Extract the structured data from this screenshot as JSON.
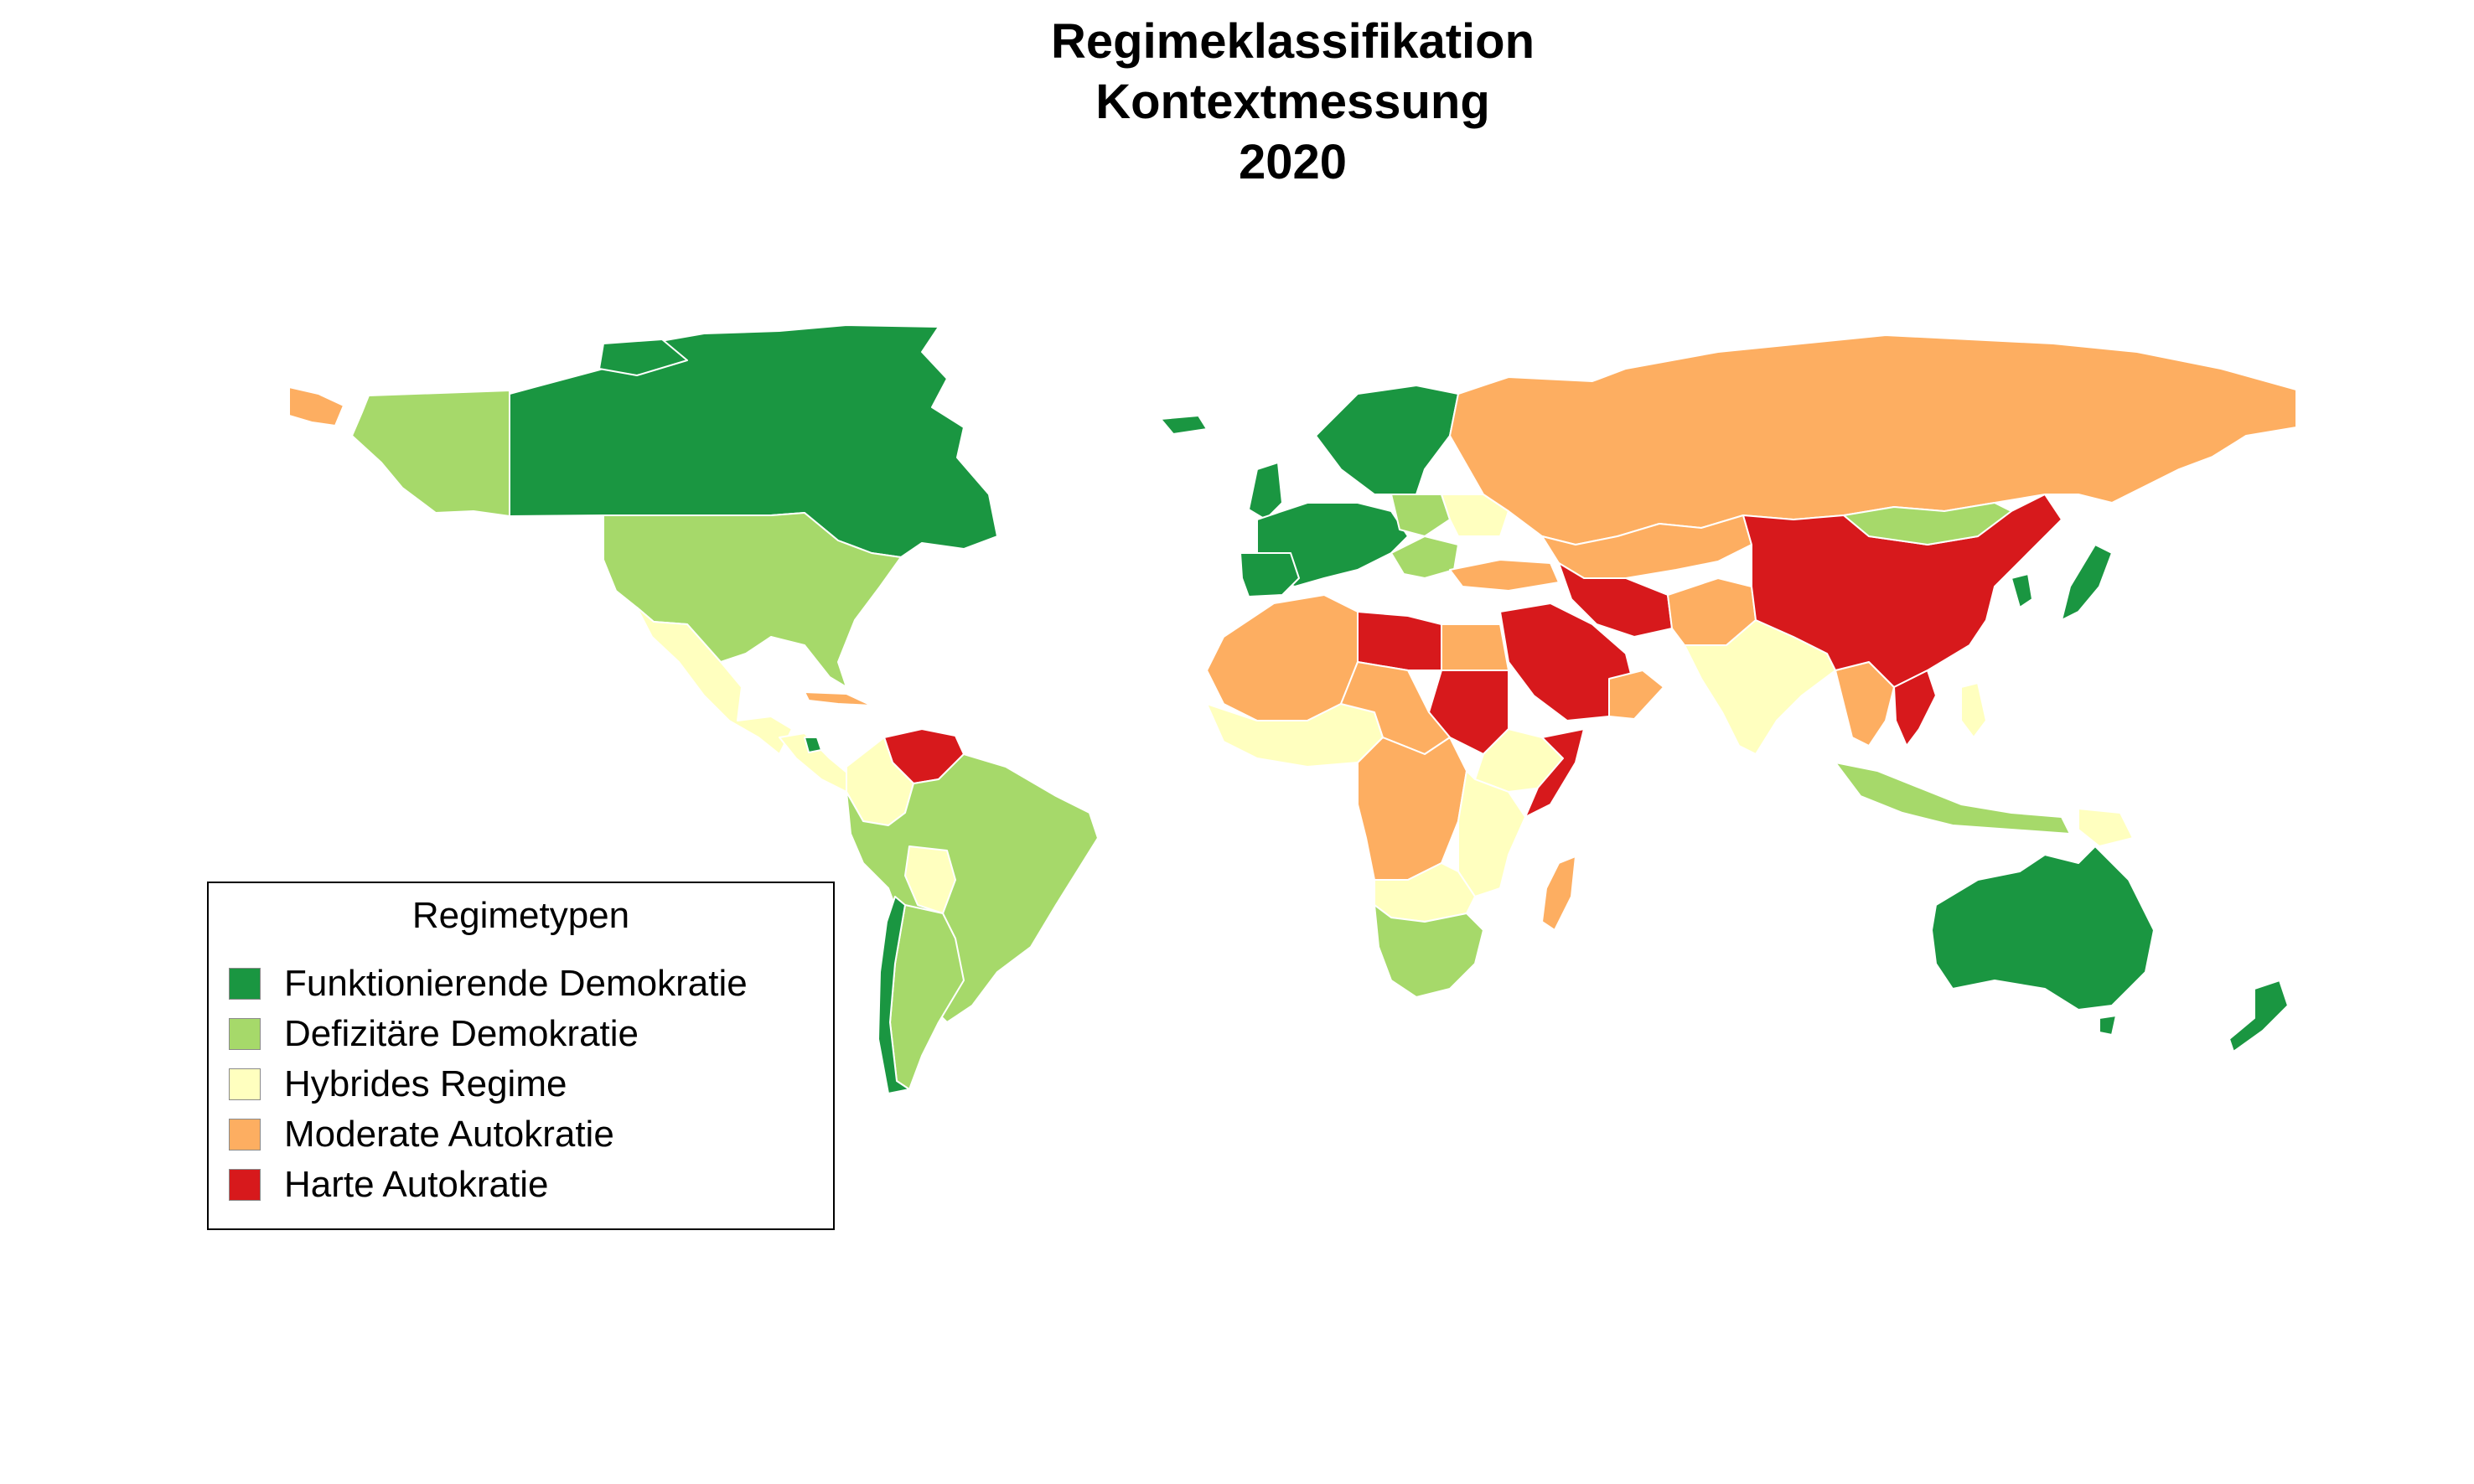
{
  "title": {
    "line1": "Regimeklassifikation",
    "line2": "Kontextmessung",
    "line3": "2020"
  },
  "legend": {
    "title": "Regimetypen",
    "items": [
      {
        "label": "Funktionierende Demokratie",
        "color": "#1a9641"
      },
      {
        "label": "Defizitäre Demokratie",
        "color": "#a6d96a"
      },
      {
        "label": "Hybrides Regime",
        "color": "#ffffbf"
      },
      {
        "label": "Moderate Autokratie",
        "color": "#fdae61"
      },
      {
        "label": "Harte Autokratie",
        "color": "#d7191c"
      }
    ]
  },
  "colors": {
    "border": "#ffffff",
    "nodata": "#ffffff",
    "background": "#ffffff"
  }
}
